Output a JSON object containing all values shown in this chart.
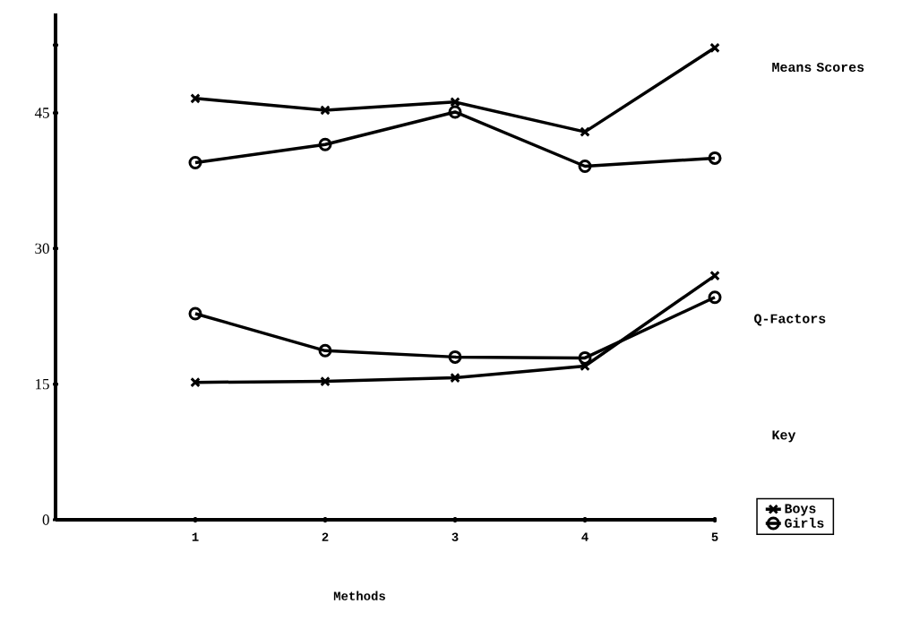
{
  "chart_data": {
    "type": "line",
    "xlabel": "Methods",
    "categories": [
      "1",
      "2",
      "3",
      "4",
      "5"
    ],
    "series": [
      {
        "name": "Boys",
        "color": "#000000",
        "marker": "cross",
        "values": [
          46.6,
          45.3,
          46.2,
          42.9,
          52.2
        ]
      },
      {
        "name": "Girls",
        "color": "#000000",
        "marker": "circle",
        "values": [
          39.5,
          41.5,
          45.1,
          39.1,
          40.0
        ]
      },
      {
        "color": "#000000",
        "marker": "circle",
        "values": [
          22.8,
          18.7,
          18.0,
          17.9,
          24.6
        ]
      },
      {
        "color": "#000000",
        "marker": "cross",
        "values": [
          15.2,
          15.3,
          15.7,
          17.0,
          27.0
        ]
      }
    ],
    "ylim": [
      0,
      56
    ],
    "yticks": [
      0,
      15,
      30,
      45,
      {
        "value": 52.5,
        "label": null
      }
    ],
    "annotations": [
      "Means Scores",
      "Q-Factors",
      "Key"
    ],
    "legend": "right",
    "line_style": "solid",
    "grid": false
  }
}
